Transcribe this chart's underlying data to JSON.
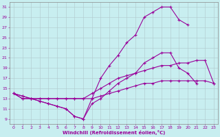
{
  "title": "",
  "xlabel": "Windchill (Refroidissement éolien,°C)",
  "ylabel": "",
  "background_color": "#c8eef0",
  "line_color": "#990099",
  "grid_color": "#b0c8cc",
  "xlim": [
    -0.5,
    23.5
  ],
  "ylim": [
    8,
    32
  ],
  "yticks": [
    9,
    11,
    13,
    15,
    17,
    19,
    21,
    23,
    25,
    27,
    29,
    31
  ],
  "xticks": [
    0,
    1,
    2,
    3,
    4,
    5,
    6,
    7,
    8,
    9,
    10,
    11,
    12,
    13,
    14,
    15,
    16,
    17,
    18,
    19,
    20,
    21,
    22,
    23
  ],
  "line1_x": [
    0,
    1,
    2,
    3,
    4,
    5,
    6,
    7,
    8,
    9,
    10,
    11,
    12,
    13,
    14,
    15,
    16,
    17,
    18,
    19,
    20,
    21,
    22,
    23
  ],
  "line1_y": [
    14,
    13,
    13,
    12.5,
    12,
    11.5,
    11,
    9.5,
    9,
    12,
    13,
    14.5,
    16,
    17,
    18,
    20,
    21,
    22,
    22,
    19,
    18,
    16,
    null,
    null
  ],
  "line2_x": [
    0,
    1,
    2,
    3,
    4,
    5,
    6,
    7,
    8,
    9,
    10,
    11,
    12,
    13,
    14,
    15,
    16,
    17,
    18,
    19,
    20,
    21,
    22,
    23
  ],
  "line2_y": [
    14,
    13,
    13,
    12.5,
    12,
    11.5,
    11,
    9.5,
    9,
    13,
    17,
    19.5,
    21.5,
    24,
    25.5,
    29,
    30,
    31,
    31,
    28.5,
    27.5,
    null,
    null,
    null
  ],
  "line3_x": [
    0,
    1,
    2,
    3,
    4,
    5,
    6,
    7,
    8,
    9,
    10,
    11,
    12,
    13,
    14,
    15,
    16,
    17,
    18,
    19,
    20,
    21,
    22,
    23
  ],
  "line3_y": [
    14,
    13.5,
    13,
    13,
    13,
    13,
    13,
    13,
    13,
    13,
    13.5,
    14,
    14.5,
    15,
    15.5,
    16,
    16,
    16.5,
    16.5,
    16.5,
    16.5,
    16.5,
    16.5,
    16
  ],
  "line4_x": [
    0,
    1,
    2,
    3,
    4,
    5,
    6,
    7,
    8,
    9,
    10,
    11,
    12,
    13,
    14,
    15,
    16,
    17,
    18,
    19,
    20,
    21,
    22,
    23
  ],
  "line4_y": [
    14,
    13.5,
    13,
    13,
    13,
    13,
    13,
    13,
    13,
    14,
    15,
    16,
    17,
    17.5,
    18,
    18.5,
    19,
    19.5,
    19.5,
    20,
    20,
    20.5,
    20.5,
    16
  ]
}
